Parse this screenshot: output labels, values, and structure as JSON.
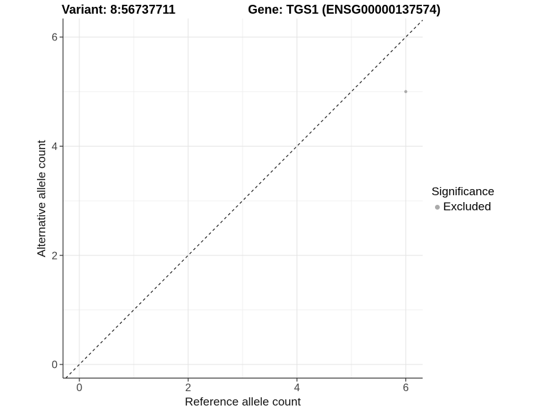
{
  "figure": {
    "title_left": "Variant: 8:56737711",
    "title_right": "Gene: TGS1 (ENSG00000137574)"
  },
  "chart_data": {
    "type": "scatter",
    "title_left": "Variant: 8:56737711",
    "title_right": "Gene: TGS1 (ENSG00000137574)",
    "xlabel": "Reference allele count",
    "ylabel": "Alternative allele count",
    "xlim": [
      -0.3,
      6.31
    ],
    "ylim": [
      -0.25,
      6.34
    ],
    "x_ticks": [
      0,
      2,
      4,
      6
    ],
    "y_ticks": [
      0,
      2,
      4,
      6
    ],
    "x_minor_gridlines": [
      1,
      3,
      5
    ],
    "y_minor_gridlines": [
      1,
      3,
      5
    ],
    "grid": true,
    "series": [
      {
        "name": "Excluded",
        "color": "#aaaaaa",
        "points": [
          {
            "x": 6,
            "y": 5
          }
        ]
      }
    ],
    "reference_line": {
      "kind": "identity",
      "equation": "y = x",
      "style": "dashed",
      "color": "#1a1a1a"
    },
    "legend": {
      "title": "Significance",
      "position": "right",
      "items": [
        {
          "label": "Excluded",
          "color": "#aaaaaa"
        }
      ]
    }
  },
  "colors": {
    "background": "#ffffff",
    "grid_major": "#e3e3e3",
    "grid_minor": "#f0f0f0",
    "axis_line": "#333333",
    "tick_label": "#404040",
    "point": "#aaaaaa"
  }
}
